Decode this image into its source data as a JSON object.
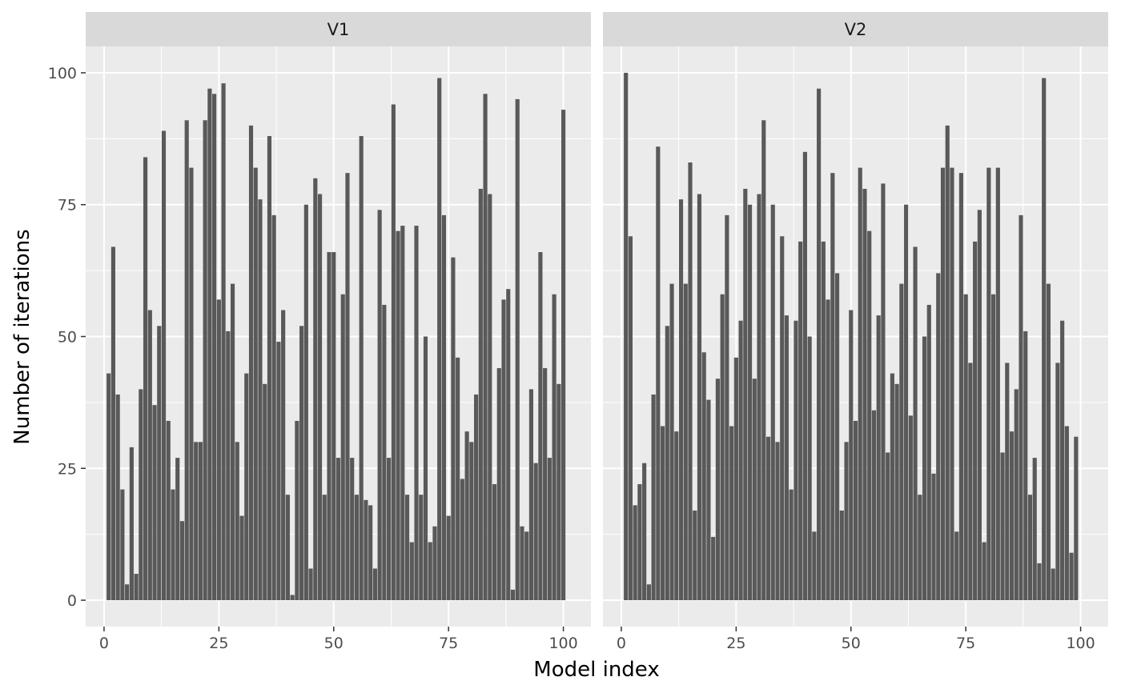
{
  "chart_data": {
    "type": "bar",
    "xlabel": "Model index",
    "ylabel": "Number of iterations",
    "xlim": [
      -4,
      106
    ],
    "ylim": [
      -5,
      105
    ],
    "x_breaks": [
      0,
      25,
      50,
      75,
      100
    ],
    "x_minor_breaks": [
      12.5,
      37.5,
      62.5,
      87.5
    ],
    "y_breaks": [
      0,
      25,
      50,
      75,
      100
    ],
    "y_minor_breaks": [
      12.5,
      37.5,
      62.5,
      87.5
    ],
    "grid": true,
    "colors": {
      "bar": "#595959",
      "panel": "#ebebeb",
      "strip": "#d9d9d9",
      "grid": "#ffffff"
    },
    "panels": [
      {
        "label": "V1",
        "x": [
          1,
          2,
          3,
          4,
          5,
          6,
          7,
          8,
          9,
          10,
          11,
          12,
          13,
          14,
          15,
          16,
          17,
          18,
          19,
          20,
          21,
          22,
          23,
          24,
          25,
          26,
          27,
          28,
          29,
          30,
          31,
          32,
          33,
          34,
          35,
          36,
          37,
          38,
          39,
          40,
          41,
          42,
          43,
          44,
          45,
          46,
          47,
          48,
          49,
          50,
          51,
          52,
          53,
          54,
          55,
          56,
          57,
          58,
          59,
          60,
          61,
          62,
          63,
          64,
          65,
          66,
          67,
          68,
          69,
          70,
          71,
          72,
          73,
          74,
          75,
          76,
          77,
          78,
          79,
          80,
          81,
          82,
          83,
          84,
          85,
          86,
          87,
          88,
          89,
          90,
          91,
          92,
          93,
          94,
          95,
          96,
          97,
          98,
          99,
          100
        ],
        "values": [
          43,
          67,
          39,
          21,
          3,
          29,
          5,
          40,
          84,
          55,
          37,
          52,
          89,
          34,
          21,
          27,
          15,
          91,
          82,
          30,
          30,
          91,
          97,
          96,
          57,
          98,
          51,
          60,
          30,
          16,
          43,
          90,
          82,
          76,
          41,
          88,
          73,
          49,
          55,
          20,
          1,
          34,
          52,
          75,
          6,
          80,
          77,
          20,
          66,
          66,
          27,
          58,
          81,
          27,
          20,
          88,
          19,
          18,
          6,
          74,
          56,
          27,
          94,
          70,
          71,
          20,
          11,
          71,
          20,
          50,
          11,
          14,
          99,
          73,
          16,
          65,
          46,
          23,
          32,
          30,
          39,
          78,
          96,
          77,
          22,
          44,
          57,
          59,
          2,
          95,
          14,
          13,
          40,
          26,
          66,
          44,
          27,
          58,
          41,
          93
        ]
      },
      {
        "label": "V2",
        "x": [
          1,
          2,
          3,
          4,
          5,
          6,
          7,
          8,
          9,
          10,
          11,
          12,
          13,
          14,
          15,
          16,
          17,
          18,
          19,
          20,
          21,
          22,
          23,
          24,
          25,
          26,
          27,
          28,
          29,
          30,
          31,
          32,
          33,
          34,
          35,
          36,
          37,
          38,
          39,
          40,
          41,
          42,
          43,
          44,
          45,
          46,
          47,
          48,
          49,
          50,
          51,
          52,
          53,
          54,
          55,
          56,
          57,
          58,
          59,
          60,
          61,
          62,
          63,
          64,
          65,
          66,
          67,
          68,
          69,
          70,
          71,
          72,
          73,
          74,
          75,
          76,
          77,
          78,
          79,
          80,
          81,
          82,
          83,
          84,
          85,
          86,
          87,
          88,
          89,
          90,
          91,
          92,
          93,
          94,
          95,
          96,
          97,
          98,
          99,
          100
        ],
        "values": [
          100,
          69,
          18,
          22,
          26,
          3,
          39,
          86,
          33,
          52,
          60,
          32,
          76,
          60,
          83,
          17,
          77,
          47,
          38,
          12,
          42,
          58,
          73,
          33,
          46,
          53,
          78,
          75,
          42,
          77,
          91,
          31,
          75,
          30,
          69,
          54,
          21,
          53,
          68,
          85,
          50,
          13,
          97,
          68,
          57,
          81,
          62,
          17,
          30,
          55,
          34,
          82,
          78,
          70,
          36,
          54,
          79,
          28,
          43,
          41,
          60,
          75,
          35,
          67,
          20,
          50,
          56,
          24,
          62,
          82,
          90,
          82,
          13,
          81,
          58,
          45,
          68,
          74,
          11,
          82,
          58,
          82,
          28,
          45,
          32,
          40,
          73,
          51,
          20,
          27,
          7,
          99,
          60,
          6,
          45,
          53,
          33,
          9,
          31,
          0
        ]
      }
    ]
  }
}
